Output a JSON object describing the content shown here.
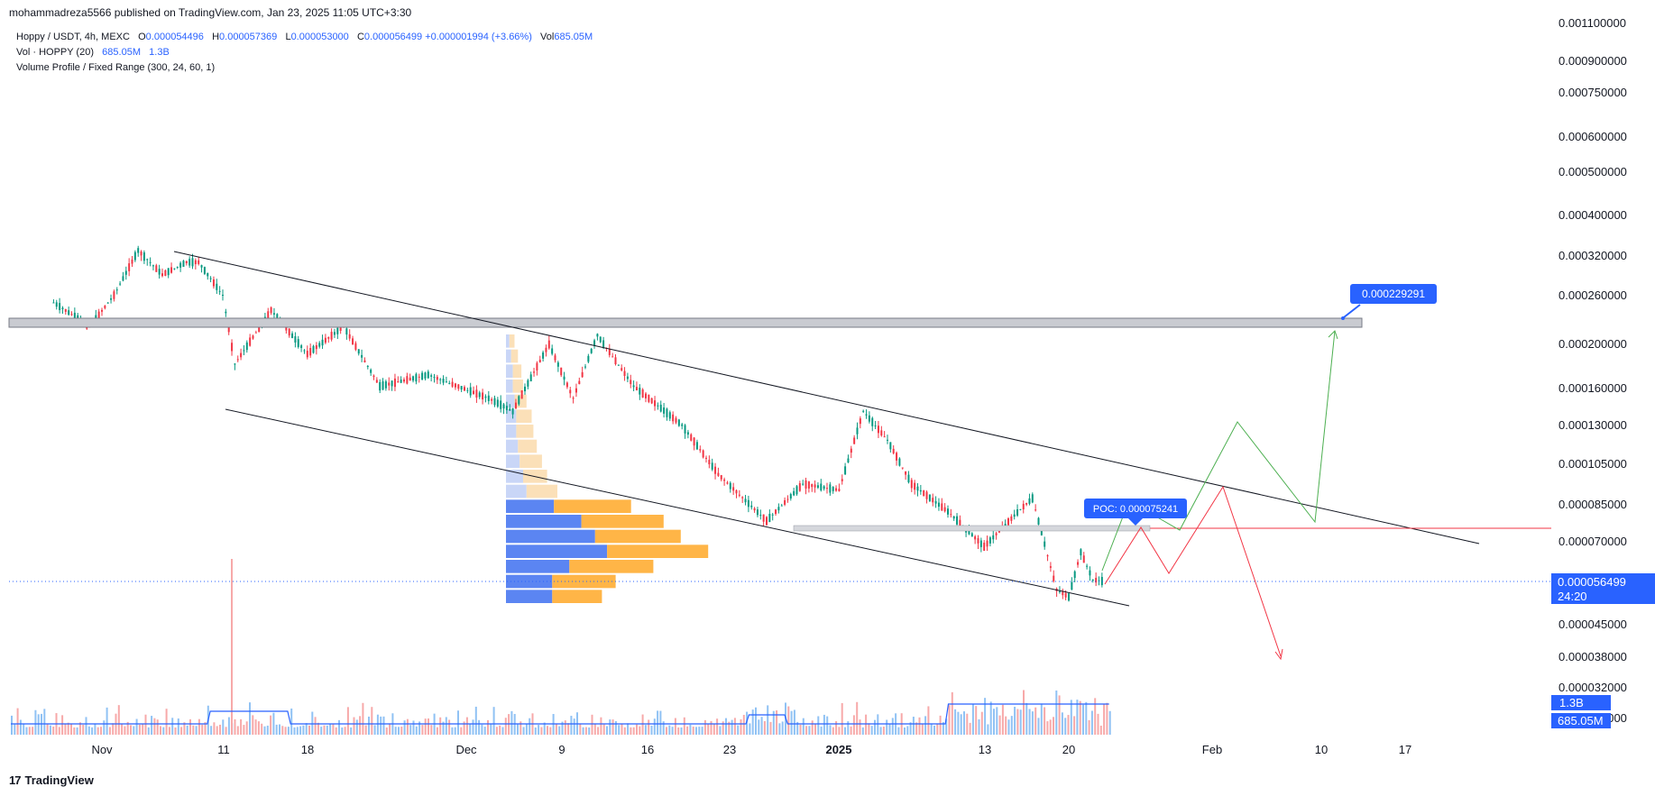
{
  "header": {
    "publisher": "mohammadreza5566 published on TradingView.com, Jan 23, 2025 11:05 UTC+3:30"
  },
  "legend": {
    "symbol": "Hoppy / USDT, 4h, MEXC",
    "o_label": "O",
    "o_value": "0.000054496",
    "h_label": "H",
    "h_value": "0.000057369",
    "l_label": "L",
    "l_value": "0.000053000",
    "c_label": "C",
    "c_value": "0.000056499",
    "change": "+0.000001994 (+3.66%)",
    "vol_label": "Vol",
    "vol_value": "685.05M",
    "volume_indicator": "Vol · HOPPY (20)",
    "vol_ind_v1": "685.05M",
    "vol_ind_v2": "1.3B",
    "volume_profile": "Volume Profile / Fixed Range (300, 24, 60, 1)"
  },
  "chart_data": {
    "type": "line",
    "symbol": "Hoppy / USDT",
    "interval": "4h",
    "exchange": "MEXC",
    "x_ticks": [
      "Nov",
      "11",
      "18",
      "Dec",
      "9",
      "16",
      "23",
      "2025",
      "13",
      "20",
      "Feb",
      "10",
      "17"
    ],
    "y_ticks": [
      "0.001100000",
      "0.000900000",
      "0.000750000",
      "0.000600000",
      "0.000500000",
      "0.000400000",
      "0.000320000",
      "0.000260000",
      "0.000200000",
      "0.000160000",
      "0.000130000",
      "0.000105000",
      "0.000085000",
      "0.000070000",
      "0.000045000",
      "0.000038000",
      "0.000032000",
      "0.000026000"
    ],
    "y_scale": "log",
    "price_path": [
      {
        "x": "Oct 28",
        "y": 0.00025
      },
      {
        "x": "Oct 31",
        "y": 0.00022
      },
      {
        "x": "Nov 2",
        "y": 0.00026
      },
      {
        "x": "Nov 4",
        "y": 0.00033
      },
      {
        "x": "Nov 6",
        "y": 0.00029
      },
      {
        "x": "Nov 8",
        "y": 0.00031
      },
      {
        "x": "Nov 9",
        "y": 0.00031
      },
      {
        "x": "Nov 11",
        "y": 0.00026
      },
      {
        "x": "Nov 12",
        "y": 0.00018
      },
      {
        "x": "Nov 15",
        "y": 0.00024
      },
      {
        "x": "Nov 18",
        "y": 0.00019
      },
      {
        "x": "Nov 21",
        "y": 0.00022
      },
      {
        "x": "Nov 24",
        "y": 0.00016
      },
      {
        "x": "Nov 28",
        "y": 0.00017
      },
      {
        "x": "Dec 3",
        "y": 0.00015
      },
      {
        "x": "Dec 5",
        "y": 0.00014
      },
      {
        "x": "Dec 8",
        "y": 0.0002
      },
      {
        "x": "Dec 10",
        "y": 0.00015
      },
      {
        "x": "Dec 12",
        "y": 0.00021
      },
      {
        "x": "Dec 15",
        "y": 0.00016
      },
      {
        "x": "Dec 19",
        "y": 0.00013
      },
      {
        "x": "Dec 22",
        "y": 0.0001
      },
      {
        "x": "Dec 26",
        "y": 7.8e-05
      },
      {
        "x": "Dec 29",
        "y": 9.5e-05
      },
      {
        "x": "Jan 1",
        "y": 9.2e-05
      },
      {
        "x": "Jan 3",
        "y": 0.00014
      },
      {
        "x": "Jan 5",
        "y": 0.00012
      },
      {
        "x": "Jan 7",
        "y": 9.5e-05
      },
      {
        "x": "Jan 10",
        "y": 8.2e-05
      },
      {
        "x": "Jan 13",
        "y": 6.8e-05
      },
      {
        "x": "Jan 16",
        "y": 8.3e-05
      },
      {
        "x": "Jan 17",
        "y": 8.8e-05
      },
      {
        "x": "Jan 19",
        "y": 5.4e-05
      },
      {
        "x": "Jan 20",
        "y": 5.2e-05
      },
      {
        "x": "Jan 21",
        "y": 6.6e-05
      },
      {
        "x": "Jan 22",
        "y": 5.7e-05
      },
      {
        "x": "Jan 23",
        "y": 5.6499e-05
      }
    ],
    "current_price": "0.000056499",
    "countdown": "24:20",
    "target_label": "0.000229291",
    "poc_label": "POC: 0.000075241",
    "volume_labels": [
      "1.3B",
      "685.05M"
    ],
    "volume_profile_rows": [
      {
        "up": 2,
        "down": 3
      },
      {
        "up": 3,
        "down": 4
      },
      {
        "up": 4,
        "down": 5
      },
      {
        "up": 4,
        "down": 6
      },
      {
        "up": 5,
        "down": 7
      },
      {
        "up": 6,
        "down": 9
      },
      {
        "up": 6,
        "down": 10
      },
      {
        "up": 7,
        "down": 11
      },
      {
        "up": 8,
        "down": 13
      },
      {
        "up": 10,
        "down": 14
      },
      {
        "up": 12,
        "down": 18
      },
      {
        "up": 28,
        "down": 45
      },
      {
        "up": 44,
        "down": 48
      },
      {
        "up": 52,
        "down": 50
      },
      {
        "up": 59,
        "down": 59
      },
      {
        "up": 37,
        "down": 49
      },
      {
        "up": 27,
        "down": 37
      },
      {
        "up": 27,
        "down": 29
      }
    ],
    "grid": false
  },
  "colors": {
    "up": "#089981",
    "down": "#f23645",
    "blue_line": "#2962ff",
    "vol_up": "#90c2f4",
    "vol_down": "#f7a9a9",
    "vp_blue": "#5b85f2",
    "vp_orange": "#ffb547",
    "vp_blue_light": "#c9d6f7",
    "vp_orange_light": "#fbe0b8",
    "label_blue": "#2962ff",
    "range_gray": "#b2b5be"
  },
  "footer": {
    "brand": "TradingView"
  }
}
